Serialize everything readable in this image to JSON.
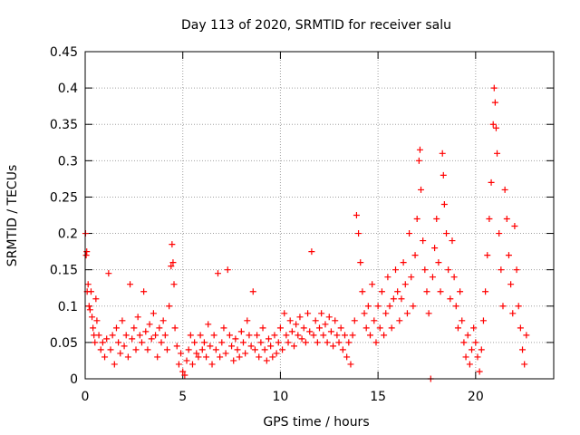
{
  "chart_data": {
    "type": "scatter",
    "title": "Day 113 of 2020, SRMTID for receiver salu",
    "xlabel": "GPS time / hours",
    "ylabel": "SRMTID / TECUs",
    "xlim": [
      0,
      24
    ],
    "ylim": [
      0,
      0.45
    ],
    "grid": true,
    "marker": "+",
    "series_color": "#ff0000",
    "x_ticks": [
      {
        "value": 0,
        "label": "0"
      },
      {
        "value": 5,
        "label": "5"
      },
      {
        "value": 10,
        "label": "10"
      },
      {
        "value": 15,
        "label": "15"
      },
      {
        "value": 20,
        "label": "20"
      }
    ],
    "y_ticks": [
      {
        "value": 0,
        "label": "0"
      },
      {
        "value": 0.05,
        "label": "0.05"
      },
      {
        "value": 0.1,
        "label": "0.1"
      },
      {
        "value": 0.15,
        "label": "0.15"
      },
      {
        "value": 0.2,
        "label": "0.2"
      },
      {
        "value": 0.25,
        "label": "0.25"
      },
      {
        "value": 0.3,
        "label": "0.3"
      },
      {
        "value": 0.35,
        "label": "0.35"
      },
      {
        "value": 0.4,
        "label": "0.4"
      },
      {
        "value": 0.45,
        "label": "0.45"
      }
    ],
    "series": [
      {
        "name": "SRMTID",
        "points": [
          [
            0.02,
            0.2
          ],
          [
            0.05,
            0.17
          ],
          [
            0.08,
            0.175
          ],
          [
            0.1,
            0.12
          ],
          [
            0.15,
            0.13
          ],
          [
            0.2,
            0.1
          ],
          [
            0.25,
            0.095
          ],
          [
            0.3,
            0.12
          ],
          [
            0.35,
            0.085
          ],
          [
            0.4,
            0.07
          ],
          [
            0.45,
            0.06
          ],
          [
            0.5,
            0.05
          ],
          [
            0.55,
            0.11
          ],
          [
            0.6,
            0.08
          ],
          [
            0.7,
            0.06
          ],
          [
            0.8,
            0.04
          ],
          [
            0.9,
            0.05
          ],
          [
            1.0,
            0.03
          ],
          [
            1.1,
            0.055
          ],
          [
            1.2,
            0.145
          ],
          [
            1.3,
            0.04
          ],
          [
            1.4,
            0.06
          ],
          [
            1.5,
            0.02
          ],
          [
            1.6,
            0.07
          ],
          [
            1.7,
            0.05
          ],
          [
            1.8,
            0.035
          ],
          [
            1.9,
            0.08
          ],
          [
            2.0,
            0.045
          ],
          [
            2.1,
            0.06
          ],
          [
            2.2,
            0.03
          ],
          [
            2.3,
            0.13
          ],
          [
            2.4,
            0.055
          ],
          [
            2.5,
            0.07
          ],
          [
            2.6,
            0.04
          ],
          [
            2.7,
            0.085
          ],
          [
            2.8,
            0.06
          ],
          [
            2.9,
            0.05
          ],
          [
            3.0,
            0.12
          ],
          [
            3.1,
            0.065
          ],
          [
            3.2,
            0.04
          ],
          [
            3.3,
            0.075
          ],
          [
            3.4,
            0.055
          ],
          [
            3.5,
            0.09
          ],
          [
            3.6,
            0.06
          ],
          [
            3.7,
            0.03
          ],
          [
            3.8,
            0.07
          ],
          [
            3.9,
            0.05
          ],
          [
            4.0,
            0.08
          ],
          [
            4.1,
            0.06
          ],
          [
            4.2,
            0.04
          ],
          [
            4.3,
            0.1
          ],
          [
            4.4,
            0.155
          ],
          [
            4.45,
            0.185
          ],
          [
            4.5,
            0.16
          ],
          [
            4.55,
            0.13
          ],
          [
            4.6,
            0.07
          ],
          [
            4.7,
            0.045
          ],
          [
            4.8,
            0.02
          ],
          [
            4.9,
            0.035
          ],
          [
            5.0,
            0.01
          ],
          [
            5.1,
            0.005
          ],
          [
            5.2,
            0.025
          ],
          [
            5.3,
            0.04
          ],
          [
            5.4,
            0.06
          ],
          [
            5.5,
            0.02
          ],
          [
            5.6,
            0.05
          ],
          [
            5.7,
            0.035
          ],
          [
            5.8,
            0.03
          ],
          [
            5.9,
            0.06
          ],
          [
            6.0,
            0.04
          ],
          [
            6.1,
            0.05
          ],
          [
            6.2,
            0.03
          ],
          [
            6.3,
            0.075
          ],
          [
            6.4,
            0.045
          ],
          [
            6.5,
            0.02
          ],
          [
            6.6,
            0.06
          ],
          [
            6.7,
            0.04
          ],
          [
            6.8,
            0.145
          ],
          [
            6.9,
            0.03
          ],
          [
            7.0,
            0.05
          ],
          [
            7.1,
            0.07
          ],
          [
            7.2,
            0.035
          ],
          [
            7.3,
            0.15
          ],
          [
            7.4,
            0.06
          ],
          [
            7.5,
            0.045
          ],
          [
            7.6,
            0.025
          ],
          [
            7.7,
            0.055
          ],
          [
            7.8,
            0.04
          ],
          [
            7.9,
            0.03
          ],
          [
            8.0,
            0.065
          ],
          [
            8.1,
            0.05
          ],
          [
            8.2,
            0.035
          ],
          [
            8.3,
            0.08
          ],
          [
            8.4,
            0.06
          ],
          [
            8.5,
            0.045
          ],
          [
            8.6,
            0.12
          ],
          [
            8.7,
            0.04
          ],
          [
            8.8,
            0.06
          ],
          [
            8.9,
            0.03
          ],
          [
            9.0,
            0.05
          ],
          [
            9.1,
            0.07
          ],
          [
            9.2,
            0.04
          ],
          [
            9.3,
            0.025
          ],
          [
            9.4,
            0.055
          ],
          [
            9.5,
            0.045
          ],
          [
            9.6,
            0.03
          ],
          [
            9.7,
            0.06
          ],
          [
            9.8,
            0.035
          ],
          [
            9.9,
            0.05
          ],
          [
            10.0,
            0.07
          ],
          [
            10.1,
            0.04
          ],
          [
            10.2,
            0.09
          ],
          [
            10.3,
            0.06
          ],
          [
            10.4,
            0.05
          ],
          [
            10.5,
            0.08
          ],
          [
            10.6,
            0.065
          ],
          [
            10.7,
            0.045
          ],
          [
            10.8,
            0.075
          ],
          [
            10.9,
            0.06
          ],
          [
            11.0,
            0.085
          ],
          [
            11.1,
            0.055
          ],
          [
            11.2,
            0.07
          ],
          [
            11.3,
            0.05
          ],
          [
            11.4,
            0.09
          ],
          [
            11.5,
            0.065
          ],
          [
            11.6,
            0.175
          ],
          [
            11.7,
            0.06
          ],
          [
            11.8,
            0.08
          ],
          [
            11.9,
            0.05
          ],
          [
            12.0,
            0.07
          ],
          [
            12.1,
            0.09
          ],
          [
            12.2,
            0.06
          ],
          [
            12.3,
            0.075
          ],
          [
            12.4,
            0.05
          ],
          [
            12.5,
            0.085
          ],
          [
            12.6,
            0.065
          ],
          [
            12.7,
            0.045
          ],
          [
            12.8,
            0.08
          ],
          [
            12.9,
            0.06
          ],
          [
            13.0,
            0.05
          ],
          [
            13.1,
            0.07
          ],
          [
            13.2,
            0.04
          ],
          [
            13.3,
            0.06
          ],
          [
            13.4,
            0.03
          ],
          [
            13.5,
            0.05
          ],
          [
            13.6,
            0.02
          ],
          [
            13.7,
            0.06
          ],
          [
            13.8,
            0.08
          ],
          [
            13.9,
            0.225
          ],
          [
            14.0,
            0.2
          ],
          [
            14.1,
            0.16
          ],
          [
            14.2,
            0.12
          ],
          [
            14.3,
            0.09
          ],
          [
            14.4,
            0.07
          ],
          [
            14.5,
            0.1
          ],
          [
            14.6,
            0.06
          ],
          [
            14.7,
            0.13
          ],
          [
            14.8,
            0.08
          ],
          [
            14.9,
            0.05
          ],
          [
            15.0,
            0.1
          ],
          [
            15.1,
            0.07
          ],
          [
            15.2,
            0.12
          ],
          [
            15.3,
            0.06
          ],
          [
            15.4,
            0.09
          ],
          [
            15.5,
            0.14
          ],
          [
            15.6,
            0.1
          ],
          [
            15.7,
            0.07
          ],
          [
            15.8,
            0.11
          ],
          [
            15.9,
            0.15
          ],
          [
            16.0,
            0.12
          ],
          [
            16.1,
            0.08
          ],
          [
            16.2,
            0.11
          ],
          [
            16.3,
            0.16
          ],
          [
            16.4,
            0.13
          ],
          [
            16.5,
            0.09
          ],
          [
            16.6,
            0.2
          ],
          [
            16.7,
            0.14
          ],
          [
            16.8,
            0.1
          ],
          [
            16.9,
            0.17
          ],
          [
            17.0,
            0.22
          ],
          [
            17.1,
            0.3
          ],
          [
            17.15,
            0.315
          ],
          [
            17.2,
            0.26
          ],
          [
            17.3,
            0.19
          ],
          [
            17.4,
            0.15
          ],
          [
            17.5,
            0.12
          ],
          [
            17.6,
            0.09
          ],
          [
            17.7,
            0.0
          ],
          [
            17.8,
            0.14
          ],
          [
            17.9,
            0.18
          ],
          [
            18.0,
            0.22
          ],
          [
            18.1,
            0.16
          ],
          [
            18.2,
            0.12
          ],
          [
            18.3,
            0.31
          ],
          [
            18.35,
            0.28
          ],
          [
            18.4,
            0.24
          ],
          [
            18.5,
            0.2
          ],
          [
            18.6,
            0.15
          ],
          [
            18.7,
            0.11
          ],
          [
            18.8,
            0.19
          ],
          [
            18.9,
            0.14
          ],
          [
            19.0,
            0.1
          ],
          [
            19.1,
            0.07
          ],
          [
            19.2,
            0.12
          ],
          [
            19.3,
            0.08
          ],
          [
            19.4,
            0.05
          ],
          [
            19.5,
            0.03
          ],
          [
            19.6,
            0.06
          ],
          [
            19.7,
            0.02
          ],
          [
            19.8,
            0.04
          ],
          [
            19.9,
            0.07
          ],
          [
            20.0,
            0.05
          ],
          [
            20.1,
            0.03
          ],
          [
            20.2,
            0.01
          ],
          [
            20.3,
            0.04
          ],
          [
            20.4,
            0.08
          ],
          [
            20.5,
            0.12
          ],
          [
            20.6,
            0.17
          ],
          [
            20.7,
            0.22
          ],
          [
            20.8,
            0.27
          ],
          [
            20.9,
            0.35
          ],
          [
            20.95,
            0.4
          ],
          [
            21.0,
            0.38
          ],
          [
            21.05,
            0.345
          ],
          [
            21.1,
            0.31
          ],
          [
            21.2,
            0.2
          ],
          [
            21.3,
            0.15
          ],
          [
            21.4,
            0.1
          ],
          [
            21.5,
            0.26
          ],
          [
            21.6,
            0.22
          ],
          [
            21.7,
            0.17
          ],
          [
            21.8,
            0.13
          ],
          [
            21.9,
            0.09
          ],
          [
            22.0,
            0.21
          ],
          [
            22.1,
            0.15
          ],
          [
            22.2,
            0.1
          ],
          [
            22.3,
            0.07
          ],
          [
            22.4,
            0.04
          ],
          [
            22.5,
            0.02
          ],
          [
            22.6,
            0.06
          ]
        ]
      }
    ]
  }
}
